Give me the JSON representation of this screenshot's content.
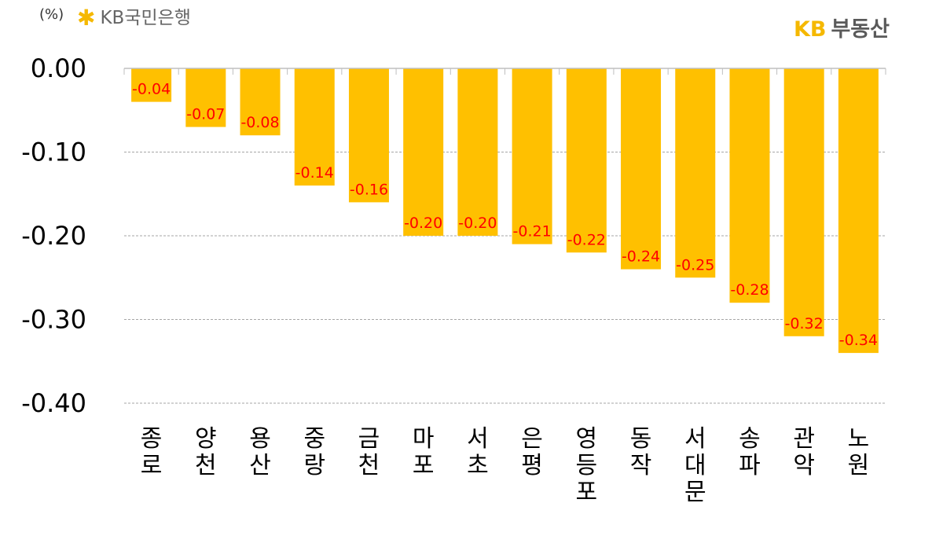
{
  "header": {
    "unit": "(%)",
    "brand_left": "KB국민은행",
    "brand_left_icon": "kb-star-icon",
    "brand_right_kb": "KB",
    "brand_right_name": "부동산"
  },
  "colors": {
    "bar": "#FFC000",
    "value_label": "#FF0000",
    "grid": "#A6A6A6",
    "axis_text": "#000000"
  },
  "chart_data": {
    "type": "bar",
    "title": "",
    "xlabel": "",
    "ylabel": "(%)",
    "ylim": [
      -0.4,
      0
    ],
    "yticks": [
      0,
      -0.1,
      -0.2,
      -0.3,
      -0.4
    ],
    "ytick_labels": [
      "0.00",
      "-0.10",
      "-0.20",
      "-0.30",
      "-0.40"
    ],
    "categories": [
      "종로",
      "양천",
      "용산",
      "중랑",
      "금천",
      "마포",
      "서초",
      "은평",
      "영등포",
      "동작",
      "서대문",
      "송파",
      "관악",
      "노원"
    ],
    "values": [
      -0.04,
      -0.07,
      -0.08,
      -0.14,
      -0.16,
      -0.2,
      -0.2,
      -0.21,
      -0.22,
      -0.24,
      -0.25,
      -0.28,
      -0.32,
      -0.34
    ],
    "value_labels": [
      "-0.04",
      "-0.07",
      "-0.08",
      "-0.14",
      "-0.16",
      "-0.20",
      "-0.20",
      "-0.21",
      "-0.22",
      "-0.24",
      "-0.25",
      "-0.28",
      "-0.32",
      "-0.34"
    ],
    "grid": true,
    "legend": "none"
  }
}
